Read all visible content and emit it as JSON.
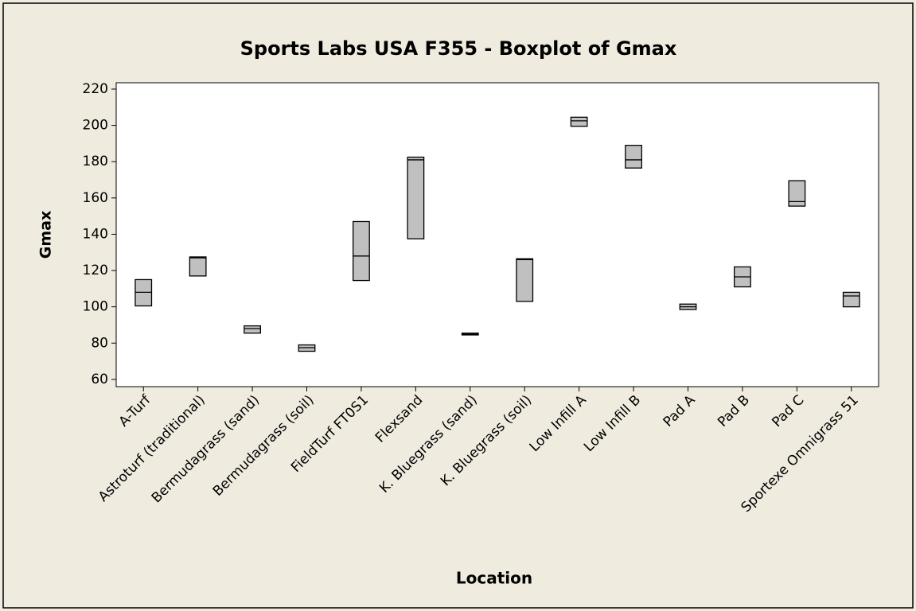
{
  "chart_data": {
    "type": "boxplot",
    "title": "Sports Labs USA F355 - Boxplot of Gmax",
    "x_label": "Location",
    "y_label": "Gmax",
    "categories": [
      "A-Turf",
      "Astroturf (traditional)",
      "Bermudagrass (sand)",
      "Bermudagrass (soil)",
      "FieldTurf FT0S1",
      "Flexsand",
      "K. Bluegrass (sand)",
      "K. Bluegrass (soil)",
      "Low Infill A",
      "Low Infill B",
      "Pad A",
      "Pad B",
      "Pad C",
      "Sportexe Omnigrass 51"
    ],
    "q1": [
      100.5,
      117,
      85.5,
      75.5,
      114.5,
      137.5,
      84.5,
      103,
      199.5,
      176.5,
      98.5,
      111,
      155.5,
      100
    ],
    "median": [
      108,
      127,
      88,
      77.5,
      128,
      181,
      85,
      126,
      202.5,
      181,
      100,
      116.5,
      158,
      106
    ],
    "q3": [
      115,
      127.5,
      89.5,
      79,
      147,
      182.5,
      85.5,
      126.5,
      204.5,
      189,
      101.5,
      122,
      169.5,
      108
    ],
    "color": "#c0c0c0",
    "ylim": [
      56,
      223.5
    ],
    "yticks": [
      60,
      80,
      100,
      120,
      140,
      160,
      180,
      200,
      220
    ]
  }
}
